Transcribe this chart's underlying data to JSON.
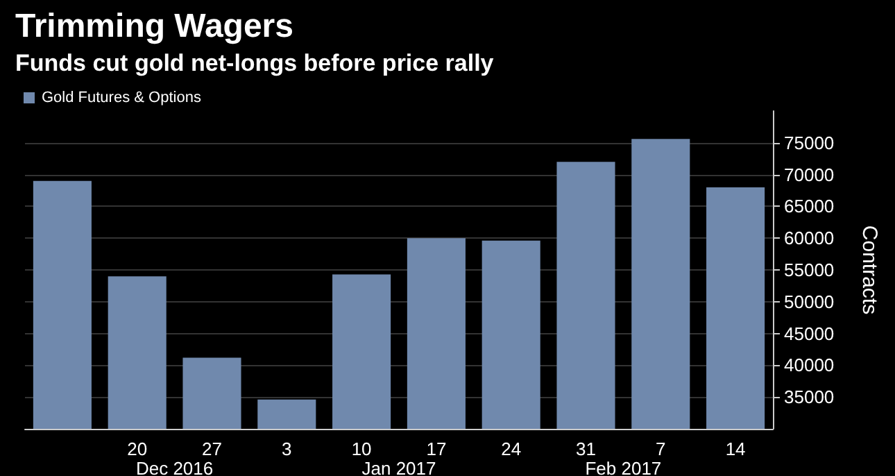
{
  "chart_data": {
    "type": "bar",
    "title": "Trimming Wagers",
    "subtitle": "Funds cut gold net-longs before price rally",
    "categories": [
      null,
      "20",
      "27",
      "3",
      "10",
      "17",
      "24",
      "31",
      "7",
      "14"
    ],
    "series": [
      {
        "name": "Gold Futures & Options",
        "color": "#7089ad",
        "values": [
          69000,
          54000,
          41200,
          34600,
          54300,
          60000,
          59600,
          72000,
          75600,
          68000
        ]
      }
    ],
    "ylabel": "Contracts",
    "ylim": [
      30000,
      80000
    ],
    "yticks": [
      35000,
      40000,
      45000,
      50000,
      55000,
      60000,
      65000,
      70000,
      75000
    ],
    "annotations": [
      "Dec 2016",
      "Jan 2017",
      "Feb 2017"
    ],
    "grid": "y",
    "legend": "top left"
  }
}
